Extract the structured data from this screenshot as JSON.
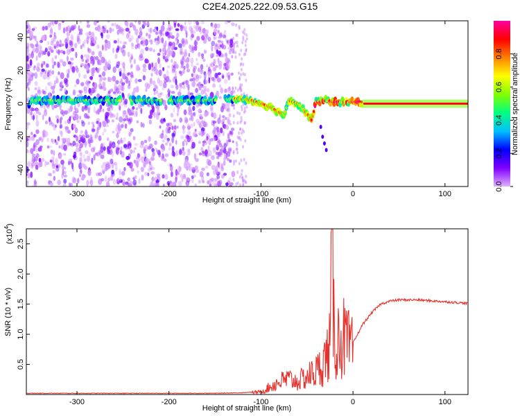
{
  "title": "C2E4.2025.222.09.53.G15",
  "chart_data": [
    {
      "type": "heatmap",
      "xlabel": "Height of straight line (km)",
      "ylabel": "Frequency (Hz)",
      "xlim": [
        -355,
        125
      ],
      "ylim": [
        -50,
        50
      ],
      "xticks": [
        "-300",
        "-200",
        "-100",
        "0",
        "100"
      ],
      "yticks": [
        "40",
        "20",
        "0",
        "-20",
        "-40"
      ],
      "colorbar": {
        "label": "Normalized spectral amplitude",
        "range": [
          0,
          1
        ],
        "ticks": [
          "0.0",
          "0.2",
          "0.4",
          "0.6",
          "0.8"
        ],
        "colormap": [
          "#e0b0ff",
          "#8000ff",
          "#0000ff",
          "#00c0ff",
          "#00ff80",
          "#80ff00",
          "#ffff00",
          "#ff8000",
          "#ff0000",
          "#ff00a0"
        ]
      },
      "ridge": {
        "x": [
          -350,
          -300,
          -250,
          -200,
          -150,
          -130,
          -110,
          -90,
          -75,
          -70,
          -60,
          -50,
          -45,
          -40,
          -30,
          -20,
          -10,
          0,
          10,
          50,
          100,
          125
        ],
        "y": [
          2,
          2,
          2,
          2,
          2,
          3,
          2,
          -2,
          -7,
          2,
          0,
          -6,
          -10,
          1,
          2,
          1,
          1,
          1,
          1,
          0,
          0,
          0
        ]
      }
    },
    {
      "type": "line",
      "xlabel": "Height of straight line (km)",
      "ylabel": "SNR (10 * v/v)",
      "yscale_label": "(x10",
      "yscale_exp": "4",
      "xlim": [
        -355,
        125
      ],
      "ylim": [
        0,
        2.75
      ],
      "xticks": [
        "-300",
        "-200",
        "-100",
        "0",
        "100"
      ],
      "yticks": [
        "0.5",
        "1.0",
        "1.5",
        "2.0",
        "2.5"
      ],
      "color": "#e8302a",
      "series": [
        {
          "x": [
            -355,
            -300,
            -250,
            -200,
            -150,
            -120,
            -100,
            -90,
            -80,
            -70,
            -60,
            -50,
            -45,
            -40,
            -35,
            -30,
            -25,
            -23,
            -20,
            -15,
            -10,
            -5,
            0,
            10,
            20,
            30,
            40,
            50,
            60,
            70,
            80,
            90,
            100,
            110,
            125
          ],
          "y": [
            0.02,
            0.02,
            0.02,
            0.02,
            0.02,
            0.03,
            0.05,
            0.15,
            0.25,
            0.3,
            0.25,
            0.35,
            0.4,
            0.45,
            0.55,
            0.7,
            0.95,
            2.75,
            1.0,
            1.1,
            1.1,
            0.95,
            0.85,
            1.15,
            1.35,
            1.5,
            1.55,
            1.57,
            1.57,
            1.57,
            1.56,
            1.55,
            1.54,
            1.53,
            1.51
          ]
        }
      ]
    }
  ]
}
